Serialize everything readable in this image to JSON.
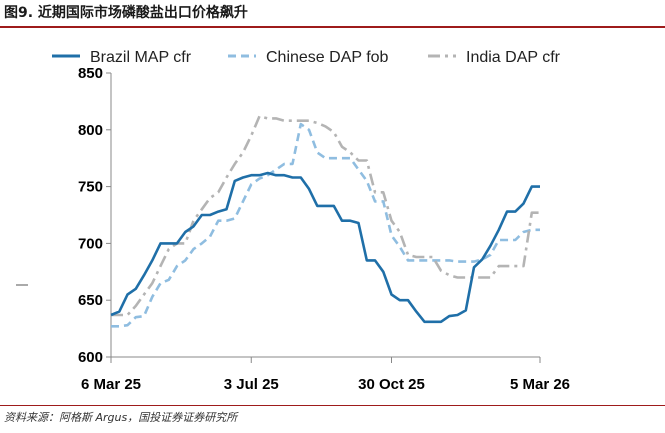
{
  "figure": {
    "title": "图9. 近期国际市场磷酸盐出口价格飙升",
    "source": "资料来源：阿格斯 Argus，国投证券证券研究所"
  },
  "chart_data": {
    "type": "line",
    "title": "近期国际市场磷酸盐出口价格飙升",
    "xlabel": "",
    "ylabel": "",
    "ylim": [
      600,
      850
    ],
    "yticks": [
      600,
      650,
      700,
      750,
      800,
      850
    ],
    "xlim": [
      0,
      52
    ],
    "xticks": [
      {
        "x": 0,
        "label": "6 Mar 25"
      },
      {
        "x": 17,
        "label": "3 Jul 25"
      },
      {
        "x": 34,
        "label": "30 Oct 25"
      },
      {
        "x": 52,
        "label": "5 Mar 26"
      }
    ],
    "legend_position": "top",
    "series": [
      {
        "name": "Brazil MAP cfr",
        "color": "#1f6fa8",
        "style": "solid",
        "x": [
          0,
          1,
          2,
          3,
          4,
          5,
          6,
          7,
          8,
          9,
          10,
          11,
          12,
          13,
          14,
          15,
          16,
          17,
          18,
          19,
          20,
          21,
          22,
          23,
          24,
          25,
          26,
          27,
          28,
          29,
          30,
          31,
          32,
          33,
          34,
          35,
          36,
          37,
          38,
          39,
          40,
          41,
          42,
          43,
          44,
          45,
          46,
          47,
          48,
          49,
          50,
          51,
          52
        ],
        "values": [
          637,
          640,
          655,
          660,
          672,
          685,
          700,
          700,
          700,
          710,
          715,
          725,
          725,
          728,
          730,
          755,
          758,
          760,
          760,
          762,
          760,
          760,
          758,
          758,
          748,
          733,
          733,
          733,
          720,
          720,
          718,
          685,
          685,
          675,
          655,
          650,
          650,
          640,
          631,
          631,
          631,
          636,
          637,
          641,
          679,
          686,
          698,
          712,
          728,
          728,
          735,
          750,
          750
        ]
      },
      {
        "name": "Chinese DAP fob",
        "color": "#8fbde0",
        "style": "dashed",
        "x": [
          0,
          1,
          2,
          3,
          4,
          5,
          6,
          7,
          8,
          9,
          10,
          11,
          12,
          13,
          14,
          15,
          16,
          17,
          18,
          19,
          20,
          21,
          22,
          23,
          24,
          25,
          26,
          27,
          28,
          29,
          30,
          31,
          32,
          33,
          34,
          35,
          36,
          37,
          38,
          39,
          40,
          41,
          42,
          43,
          44,
          45,
          46,
          47,
          48,
          49,
          50,
          51,
          52
        ],
        "values": [
          627,
          627,
          628,
          635,
          636,
          653,
          665,
          668,
          680,
          685,
          695,
          700,
          706,
          720,
          720,
          722,
          737,
          752,
          757,
          760,
          765,
          770,
          770,
          805,
          800,
          780,
          775,
          775,
          775,
          775,
          765,
          755,
          737,
          737,
          707,
          697,
          685,
          685,
          685,
          685,
          685,
          685,
          684,
          684,
          684,
          686,
          690,
          703,
          703,
          703,
          710,
          712,
          712
        ]
      },
      {
        "name": "India DAP cfr",
        "color": "#b4b4b4",
        "style": "dashdot",
        "x": [
          0,
          1,
          2,
          3,
          4,
          5,
          6,
          7,
          8,
          9,
          10,
          11,
          12,
          13,
          14,
          15,
          16,
          17,
          18,
          19,
          20,
          21,
          22,
          23,
          24,
          25,
          26,
          27,
          28,
          29,
          30,
          31,
          32,
          33,
          34,
          35,
          36,
          37,
          38,
          39,
          40,
          41,
          42,
          43,
          44,
          45,
          46,
          47,
          48,
          49,
          50,
          51,
          52
        ],
        "values": [
          637,
          637,
          637,
          645,
          655,
          665,
          680,
          695,
          700,
          700,
          720,
          730,
          740,
          745,
          758,
          770,
          780,
          795,
          812,
          810,
          810,
          808,
          808,
          808,
          808,
          806,
          803,
          798,
          785,
          780,
          773,
          773,
          745,
          745,
          720,
          710,
          690,
          688,
          688,
          688,
          676,
          672,
          670,
          670,
          670,
          670,
          670,
          680,
          680,
          680,
          680,
          727,
          727
        ]
      }
    ]
  }
}
